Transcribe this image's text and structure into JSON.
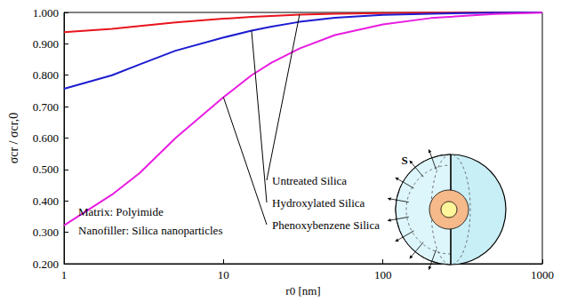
{
  "chart_data": {
    "type": "line",
    "x_label": "r0 [nm]",
    "y_label": "σcr / σcr,0",
    "log": "x",
    "grid": false,
    "xlim": [
      1,
      1000
    ],
    "xticks": [
      1,
      10,
      100,
      1000
    ],
    "ylim": [
      0.2,
      1.0
    ],
    "yticks": [
      {
        "value": 0.2,
        "label": "0.200"
      },
      {
        "value": 0.3,
        "label": "0.300"
      },
      {
        "value": 0.4,
        "label": "0.400"
      },
      {
        "value": 0.5,
        "label": "0.500"
      },
      {
        "value": 0.6,
        "label": "0.600"
      },
      {
        "value": 0.7,
        "label": "0.700"
      },
      {
        "value": 0.8,
        "label": "0.800"
      },
      {
        "value": 0.9,
        "label": "0.900"
      },
      {
        "value": 1.0,
        "label": "1.000"
      }
    ],
    "x": [
      1,
      2,
      3,
      5,
      10,
      15,
      20,
      30,
      50,
      100,
      200,
      500,
      1000
    ],
    "series": [
      {
        "name": "Untreated Silica",
        "color": "#e8141c",
        "values": [
          0.937,
          0.948,
          0.957,
          0.968,
          0.98,
          0.986,
          0.989,
          0.993,
          0.996,
          0.998,
          0.999,
          1.0,
          1.0
        ]
      },
      {
        "name": "Hydroxylated Silica",
        "color": "#1c1cd0",
        "values": [
          0.757,
          0.8,
          0.835,
          0.878,
          0.92,
          0.942,
          0.955,
          0.97,
          0.983,
          0.992,
          0.996,
          0.999,
          1.0
        ]
      },
      {
        "name": "Phenoxybenzene Silica",
        "color": "#e81ce0",
        "values": [
          0.322,
          0.42,
          0.49,
          0.6,
          0.73,
          0.8,
          0.84,
          0.885,
          0.928,
          0.962,
          0.982,
          0.995,
          0.999
        ]
      }
    ],
    "annotations": [
      "Untreated Silica",
      "Hydroxylated Silica",
      "Phenoxybenzene Silica",
      "Matrix: Polyimide",
      "Nanofiller: Silica nanoparticles",
      "S"
    ]
  }
}
